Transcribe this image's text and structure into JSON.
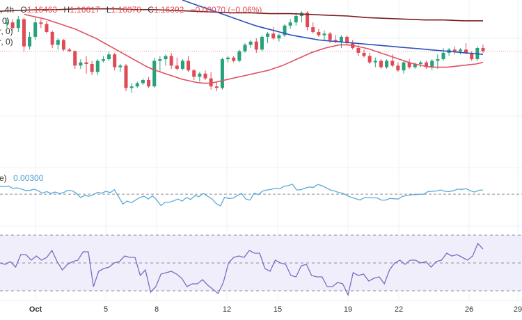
{
  "legend": {
    "interval": ", 4h",
    "open_label": "O",
    "open": "1.16463",
    "high_label": "H",
    "high": "1.16617",
    "low_label": "L",
    "low": "1.16378",
    "close_label": "C",
    "close": "1.16392",
    "change": "−0.00070 (−0.06%)"
  },
  "ma_labels": [
    "0)",
    "r, 0)",
    "r, 0)"
  ],
  "indicator2": {
    "label_tail": "e)",
    "value": "0.00300"
  },
  "colors": {
    "up": "#26a17b",
    "down": "#e04a55",
    "ma_short": "#e0505e",
    "ma_mid": "#2b4fb8",
    "ma_long": "#7a1f1f",
    "osc": "#5aa9d8",
    "rsi": "#7a6cc0",
    "rsi_band": "#f1eefb"
  },
  "chart_data": [
    {
      "type": "candlestick",
      "title": "4h price",
      "x_ticks": [
        "Oct",
        "5",
        "8",
        "12",
        "15",
        "19",
        "22",
        "26",
        "29"
      ],
      "ohlc": [
        [
          1.166,
          1.1668,
          1.1655,
          1.1662
        ],
        [
          1.1662,
          1.1666,
          1.1652,
          1.1655
        ],
        [
          1.1655,
          1.167,
          1.165,
          1.1666
        ],
        [
          1.1666,
          1.1668,
          1.1626,
          1.1632
        ],
        [
          1.1632,
          1.165,
          1.1628,
          1.1644
        ],
        [
          1.1644,
          1.1668,
          1.164,
          1.1662
        ],
        [
          1.1662,
          1.1666,
          1.1655,
          1.166
        ],
        [
          1.166,
          1.1664,
          1.1648,
          1.165
        ],
        [
          1.165,
          1.1652,
          1.163,
          1.1634
        ],
        [
          1.1634,
          1.1642,
          1.1628,
          1.164
        ],
        [
          1.164,
          1.1641,
          1.1626,
          1.1628
        ],
        [
          1.1628,
          1.163,
          1.1625,
          1.1626
        ],
        [
          1.1626,
          1.1627,
          1.1604,
          1.1608
        ],
        [
          1.1608,
          1.1616,
          1.1604,
          1.1612
        ],
        [
          1.1612,
          1.162,
          1.1598,
          1.161
        ],
        [
          1.161,
          1.1614,
          1.1596,
          1.16
        ],
        [
          1.16,
          1.1616,
          1.1596,
          1.1614
        ],
        [
          1.1614,
          1.162,
          1.1612,
          1.1616
        ],
        [
          1.1616,
          1.1626,
          1.1614,
          1.1622
        ],
        [
          1.1622,
          1.1624,
          1.1602,
          1.1606
        ],
        [
          1.1606,
          1.161,
          1.16,
          1.1608
        ],
        [
          1.1608,
          1.161,
          1.1576,
          1.158
        ],
        [
          1.158,
          1.1586,
          1.1574,
          1.1582
        ],
        [
          1.1582,
          1.1588,
          1.158,
          1.1586
        ],
        [
          1.1586,
          1.1592,
          1.1584,
          1.159
        ],
        [
          1.159,
          1.1594,
          1.158,
          1.1582
        ],
        [
          1.1582,
          1.1618,
          1.158,
          1.1614
        ],
        [
          1.1614,
          1.162,
          1.16,
          1.1616
        ],
        [
          1.1616,
          1.1622,
          1.1608,
          1.162
        ],
        [
          1.162,
          1.1624,
          1.1604,
          1.1608
        ],
        [
          1.1608,
          1.1618,
          1.1602,
          1.1604
        ],
        [
          1.1604,
          1.1616,
          1.1602,
          1.1614
        ],
        [
          1.1614,
          1.162,
          1.16,
          1.1602
        ],
        [
          1.1602,
          1.1604,
          1.159,
          1.1594
        ],
        [
          1.1594,
          1.16,
          1.1588,
          1.1598
        ],
        [
          1.1598,
          1.1602,
          1.159,
          1.1592
        ],
        [
          1.1592,
          1.16,
          1.1578,
          1.1582
        ],
        [
          1.1582,
          1.1588,
          1.1576,
          1.158
        ],
        [
          1.158,
          1.1618,
          1.1578,
          1.1616
        ],
        [
          1.1616,
          1.162,
          1.1612,
          1.1618
        ],
        [
          1.1618,
          1.162,
          1.1612,
          1.1614
        ],
        [
          1.1614,
          1.1628,
          1.1612,
          1.1626
        ],
        [
          1.1626,
          1.1636,
          1.1624,
          1.1634
        ],
        [
          1.1634,
          1.164,
          1.163,
          1.1638
        ],
        [
          1.1638,
          1.1642,
          1.1624,
          1.1628
        ],
        [
          1.1628,
          1.1646,
          1.1626,
          1.1644
        ],
        [
          1.1644,
          1.165,
          1.1636,
          1.1648
        ],
        [
          1.1648,
          1.1656,
          1.164,
          1.1642
        ],
        [
          1.1642,
          1.1648,
          1.1638,
          1.1646
        ],
        [
          1.1646,
          1.166,
          1.1644,
          1.1658
        ],
        [
          1.1658,
          1.1666,
          1.1654,
          1.1662
        ],
        [
          1.1662,
          1.1674,
          1.1658,
          1.167
        ],
        [
          1.167,
          1.1676,
          1.1662,
          1.1674
        ],
        [
          1.1674,
          1.1676,
          1.1652,
          1.1656
        ],
        [
          1.1656,
          1.1662,
          1.1648,
          1.165
        ],
        [
          1.165,
          1.1654,
          1.1644,
          1.1646
        ],
        [
          1.1646,
          1.1652,
          1.164,
          1.1648
        ],
        [
          1.1648,
          1.165,
          1.1636,
          1.164
        ],
        [
          1.164,
          1.1646,
          1.1636,
          1.1638
        ],
        [
          1.1638,
          1.1646,
          1.163,
          1.1644
        ],
        [
          1.1644,
          1.1646,
          1.1634,
          1.1636
        ],
        [
          1.1636,
          1.164,
          1.1628,
          1.163
        ],
        [
          1.163,
          1.1634,
          1.162,
          1.1624
        ],
        [
          1.1624,
          1.1628,
          1.1618,
          1.162
        ],
        [
          1.162,
          1.1624,
          1.161,
          1.1612
        ],
        [
          1.1612,
          1.1618,
          1.1606,
          1.1614
        ],
        [
          1.1614,
          1.1616,
          1.1604,
          1.1606
        ],
        [
          1.1606,
          1.1616,
          1.1604,
          1.1614
        ],
        [
          1.1614,
          1.1622,
          1.1606,
          1.1608
        ],
        [
          1.1608,
          1.1612,
          1.16,
          1.1602
        ],
        [
          1.1602,
          1.1614,
          1.1598,
          1.1612
        ],
        [
          1.1612,
          1.1616,
          1.1604,
          1.1606
        ],
        [
          1.1606,
          1.1612,
          1.1604,
          1.161
        ],
        [
          1.161,
          1.1614,
          1.1606,
          1.1612
        ],
        [
          1.1612,
          1.1614,
          1.1604,
          1.1606
        ],
        [
          1.1606,
          1.1616,
          1.1602,
          1.1614
        ],
        [
          1.1614,
          1.1622,
          1.1604,
          1.1616
        ],
        [
          1.1616,
          1.163,
          1.1614,
          1.1624
        ],
        [
          1.1624,
          1.163,
          1.162,
          1.1628
        ],
        [
          1.1628,
          1.1632,
          1.1622,
          1.1626
        ],
        [
          1.1626,
          1.163,
          1.1622,
          1.1628
        ],
        [
          1.1628,
          1.1636,
          1.1622,
          1.1624
        ],
        [
          1.1624,
          1.1626,
          1.1614,
          1.1616
        ],
        [
          1.1616,
          1.1632,
          1.1614,
          1.163
        ],
        [
          1.163,
          1.1634,
          1.1624,
          1.1626
        ]
      ],
      "ma_short": [
        1.1672,
        1.167,
        1.1668,
        1.1666,
        1.1663,
        1.166,
        1.1657,
        1.1654,
        1.165,
        1.1646,
        1.1642,
        1.1637,
        1.1632,
        1.1627,
        1.1622,
        1.1617,
        1.1612,
        1.1607,
        1.1603,
        1.16,
        1.1597,
        1.1594,
        1.1591,
        1.1589,
        1.1587,
        1.1586,
        1.1586,
        1.1588,
        1.159,
        1.1592,
        1.1594,
        1.1596,
        1.1598,
        1.16,
        1.1602,
        1.1605,
        1.1608,
        1.1612,
        1.1616,
        1.162,
        1.1624,
        1.1627,
        1.163,
        1.1632,
        1.1634,
        1.1634,
        1.1633,
        1.1631,
        1.1629,
        1.1626,
        1.1623,
        1.162,
        1.1617,
        1.1614,
        1.1611,
        1.1609,
        1.1607,
        1.1606,
        1.1606,
        1.1606,
        1.1607,
        1.1608,
        1.1609,
        1.161,
        1.1612
      ],
      "ma_mid": [
        1.169,
        1.1686,
        1.1682,
        1.1678,
        1.1674,
        1.167,
        1.1666,
        1.1662,
        1.1658,
        1.1655,
        1.1652,
        1.1649,
        1.1646,
        1.1644,
        1.1642,
        1.164,
        1.1639,
        1.1638,
        1.1637,
        1.1636,
        1.1635,
        1.1634,
        1.1633,
        1.1632,
        1.1631,
        1.163,
        1.1629,
        1.1628,
        1.1627,
        1.1626,
        1.1625,
        1.1624,
        1.1623,
        1.1622
      ],
      "ma_long": [
        1.1676,
        1.1677,
        1.1678,
        1.1678,
        1.1679,
        1.1679,
        1.1679,
        1.1678,
        1.1678,
        1.1677,
        1.1676,
        1.1675,
        1.1674,
        1.1674,
        1.1673,
        1.1673,
        1.1672,
        1.1671,
        1.167,
        1.1668,
        1.1667,
        1.1666,
        1.1665,
        1.1665,
        1.1664,
        1.1664
      ],
      "ylim": [
        1.157,
        1.169
      ],
      "reference_price": 1.1626
    },
    {
      "type": "line",
      "title": "oscillator",
      "value_label": "0.00300",
      "zero_line": 0,
      "values": [
        0.003,
        0.0028,
        0.0031,
        0.0022,
        0.0024,
        0.002,
        0.0014,
        0.0014,
        0.0019,
        0.0013,
        0.0004,
        0.001,
        0.0003,
        0.0008,
        0.0003,
        0.0006,
        0.0015,
        0.0013,
        0.0004,
        -0.0012,
        -0.0005,
        -0.0008,
        -0.0002,
        0.0007,
        0.0004,
        0.0011,
        0.0006,
        0.0017,
        -0.001,
        -0.0037,
        -0.0026,
        -0.0032,
        -0.0022,
        -0.0012,
        -0.0008,
        -0.0018,
        -0.0006,
        -0.0022,
        -0.0043,
        -0.003,
        -0.003,
        -0.0025,
        -0.0018,
        -0.0026,
        -0.0012,
        -0.002,
        -0.0005,
        -0.0009,
        0.0003,
        -0.0008,
        -0.0017,
        -0.0035,
        -0.0044,
        -0.0012,
        -0.0016,
        -0.0015,
        -0.0005,
        0.0003,
        -0.0018,
        -0.0022,
        0.0004,
        -0.0001,
        0.0012,
        0.0016,
        0.0018,
        0.0023,
        0.002,
        0.003,
        0.0032,
        0.0038,
        0.0016,
        0.0017,
        0.0023,
        0.0027,
        0.0026,
        0.0037,
        0.0032,
        0.0024,
        0.0016,
        0.0012,
        0.0006,
        0.0003,
        -0.0006,
        -0.0012,
        -0.0017,
        -0.0022,
        -0.0013,
        -0.0013,
        -0.0014,
        -0.0014,
        -0.0022,
        -0.0022,
        -0.0016,
        -0.0017,
        -0.0018,
        -0.0008,
        -0.0005,
        -0.0002,
        -0.0002,
        0.0,
        0.0,
        0.001,
        0.0011,
        0.0012,
        0.0016,
        0.0011,
        0.001,
        0.0013,
        0.0019,
        0.0018,
        0.0021,
        0.0013,
        0.0008,
        0.0015,
        0.0016
      ],
      "ylim": [
        -0.012,
        0.01
      ]
    },
    {
      "type": "line",
      "title": "RSI",
      "bands": [
        30,
        50,
        70
      ],
      "values": [
        50,
        49,
        51,
        47,
        56,
        56,
        52,
        55,
        52,
        54,
        59,
        51,
        45,
        49,
        51,
        52,
        58,
        58,
        33,
        44,
        46,
        47,
        50,
        51,
        55,
        54,
        54,
        41,
        45,
        29,
        33,
        42,
        43,
        44,
        42,
        39,
        33,
        35,
        35,
        38,
        34,
        31,
        28,
        36,
        50,
        54,
        55,
        54,
        59,
        57,
        57,
        46,
        44,
        52,
        50,
        49,
        41,
        40,
        48,
        49,
        41,
        40,
        40,
        33,
        33,
        36,
        35,
        27,
        43,
        41,
        42,
        37,
        39,
        40,
        35,
        45,
        50,
        52,
        49,
        52,
        52,
        50,
        51,
        47,
        51,
        52,
        57,
        55,
        56,
        54,
        52,
        55,
        64,
        60
      ]
    }
  ]
}
